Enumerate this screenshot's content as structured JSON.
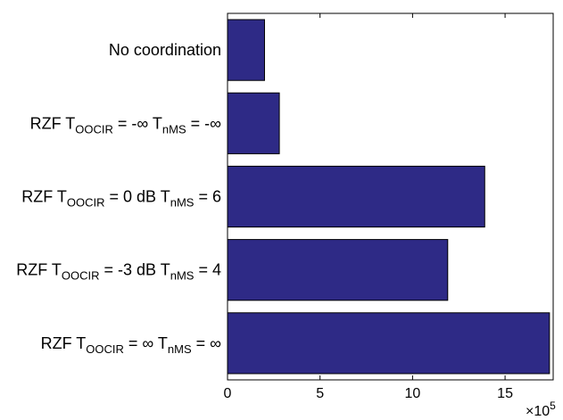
{
  "chart_data": {
    "type": "bar",
    "orientation": "horizontal",
    "categories": [
      {
        "parts": [
          {
            "t": "No coordination",
            "sub": false
          }
        ]
      },
      {
        "parts": [
          {
            "t": "RZF T",
            "sub": false
          },
          {
            "t": "OOCIR",
            "sub": true
          },
          {
            "t": " = -∞ T",
            "sub": false
          },
          {
            "t": "nMS",
            "sub": true
          },
          {
            "t": " = -∞",
            "sub": false
          }
        ]
      },
      {
        "parts": [
          {
            "t": "RZF T",
            "sub": false
          },
          {
            "t": "OOCIR",
            "sub": true
          },
          {
            "t": " = 0 dB T",
            "sub": false
          },
          {
            "t": "nMS",
            "sub": true
          },
          {
            "t": " = 6",
            "sub": false
          }
        ]
      },
      {
        "parts": [
          {
            "t": "RZF T",
            "sub": false
          },
          {
            "t": "OOCIR",
            "sub": true
          },
          {
            "t": " = -3 dB T",
            "sub": false
          },
          {
            "t": "nMS",
            "sub": true
          },
          {
            "t": " = 4",
            "sub": false
          }
        ]
      },
      {
        "parts": [
          {
            "t": "RZF T",
            "sub": false
          },
          {
            "t": "OOCIR",
            "sub": true
          },
          {
            "t": " = ∞ T",
            "sub": false
          },
          {
            "t": "nMS",
            "sub": true
          },
          {
            "t": " = ∞",
            "sub": false
          }
        ]
      }
    ],
    "category_text": [
      "No coordination",
      "RZF TOOCIR = -∞ TnMS = -∞",
      "RZF TOOCIR = 0 dB TnMS = 6",
      "RZF TOOCIR = -3 dB TnMS = 4",
      "RZF TOOCIR = ∞ TnMS = ∞"
    ],
    "values": [
      2.0,
      2.8,
      13.9,
      11.9,
      17.4
    ],
    "xlim": [
      0,
      17.6
    ],
    "xticks": [
      0,
      5,
      10,
      15
    ],
    "tick_labels": [
      "0",
      "5",
      "10",
      "15"
    ],
    "multiplier": {
      "base": "×10",
      "exp": "5"
    },
    "bar_color": "#2e2a86",
    "grid": false,
    "title": "",
    "xlabel": "",
    "ylabel": ""
  }
}
